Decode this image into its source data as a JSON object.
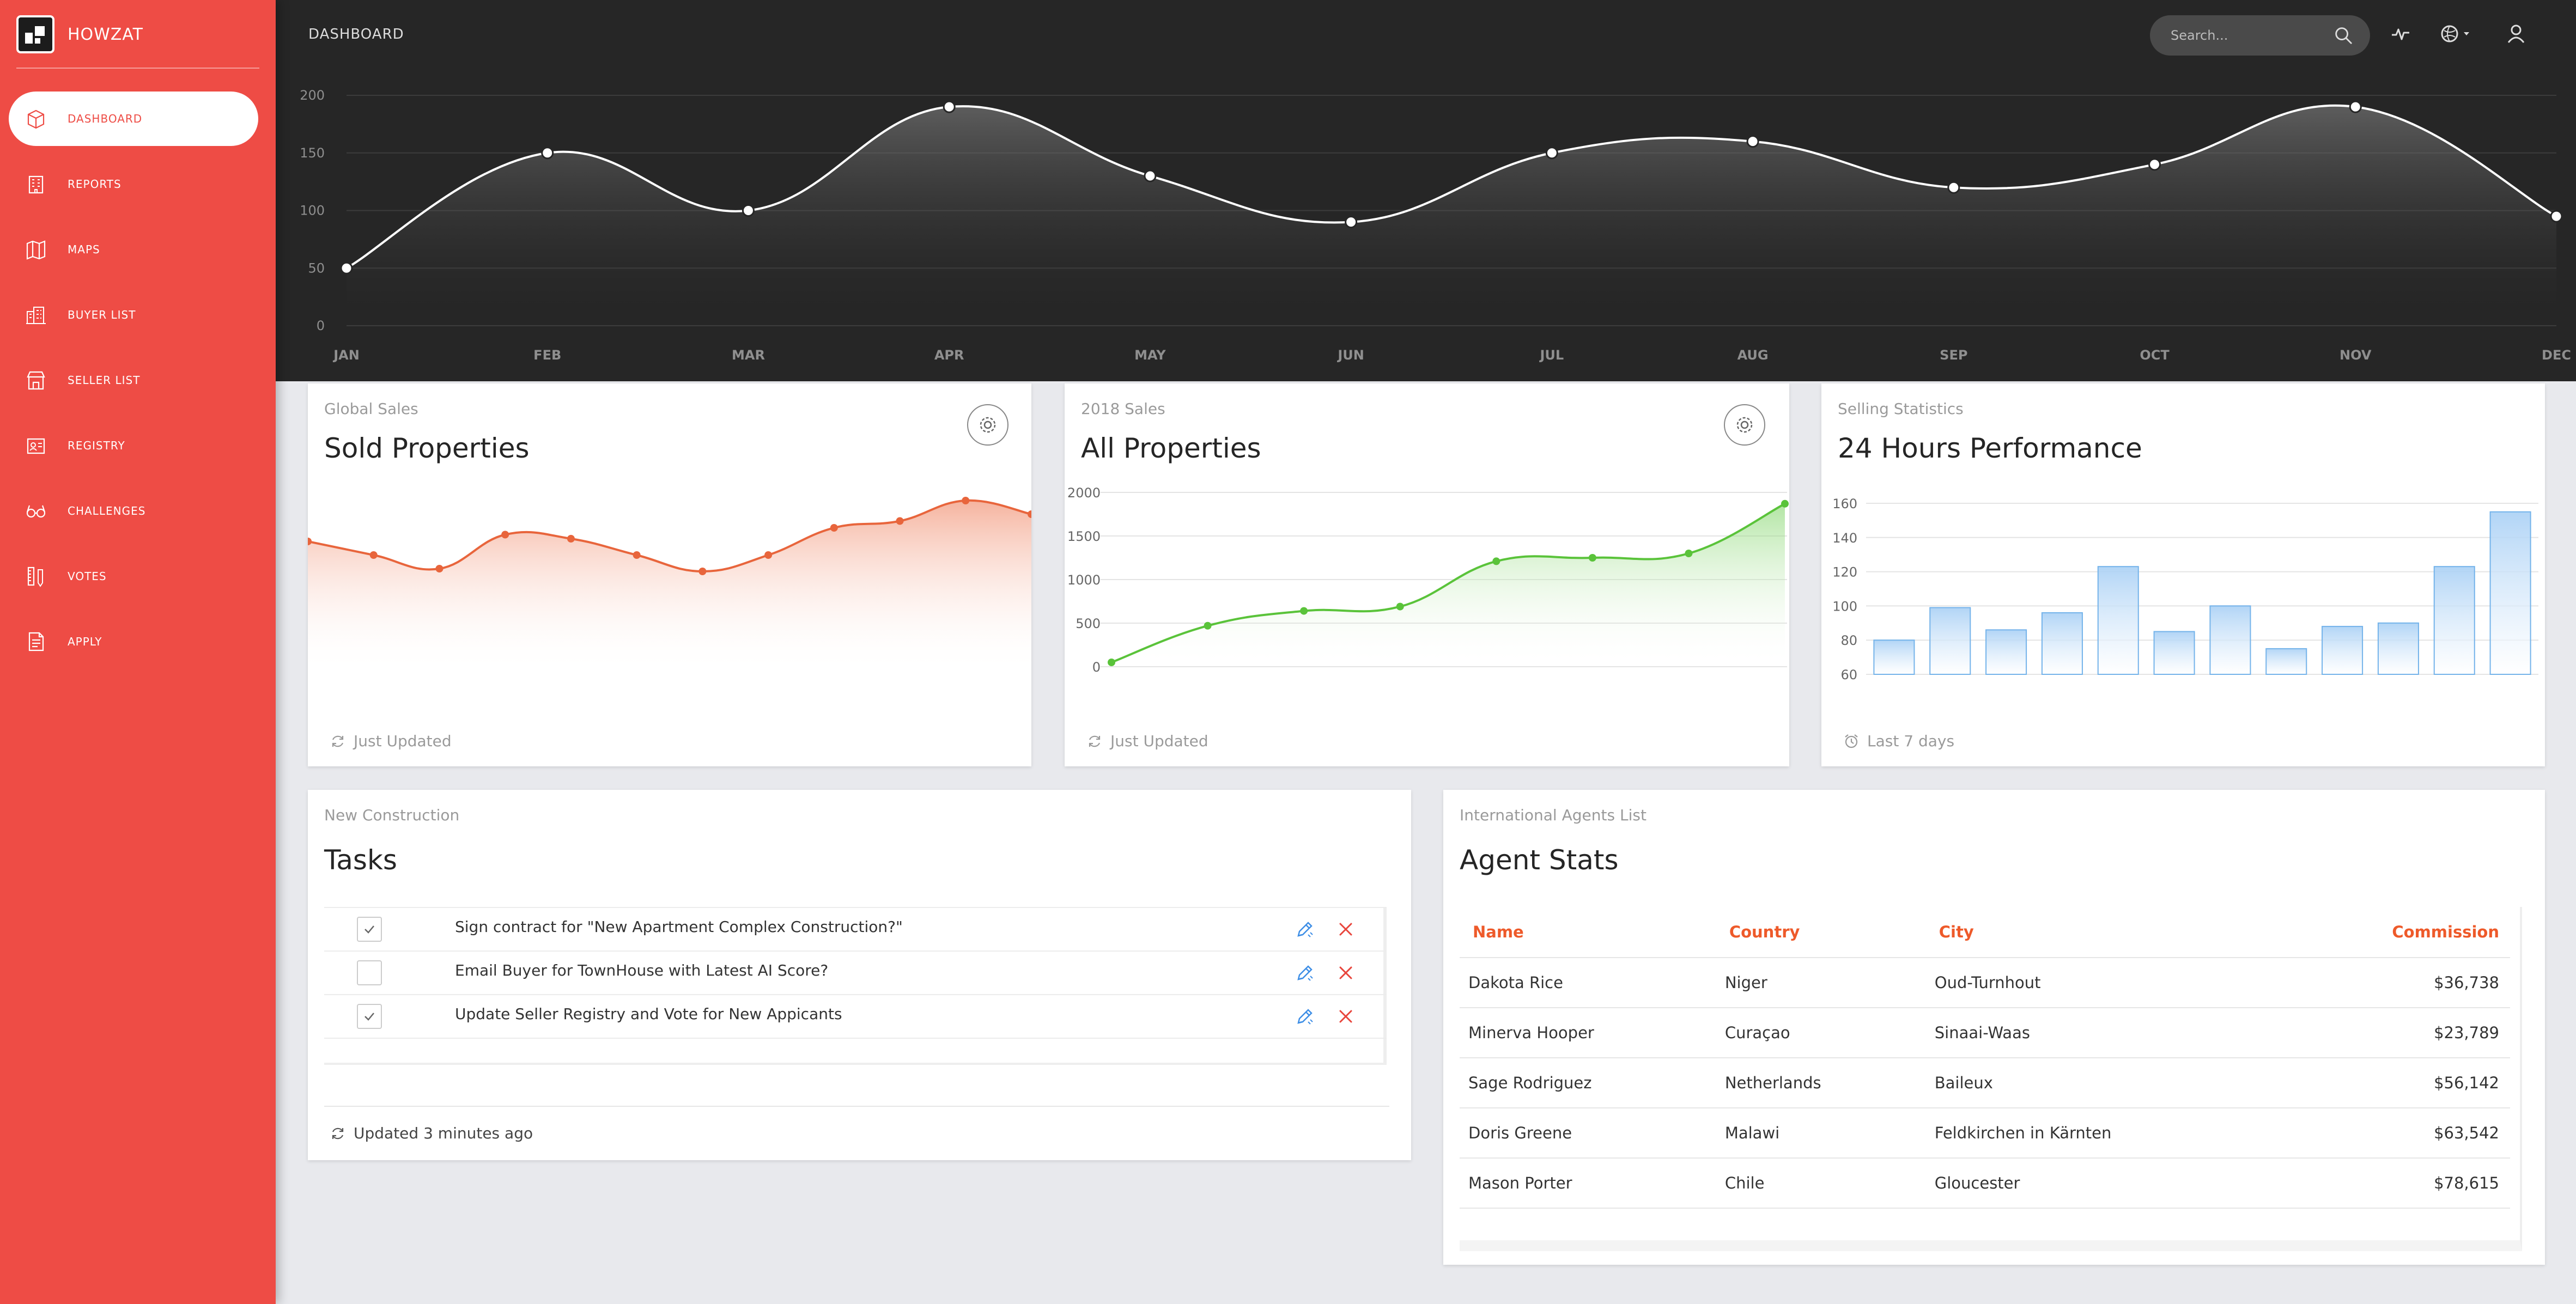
{
  "brand": {
    "name": "HOWZAT"
  },
  "nav": [
    {
      "label": "DASHBOARD",
      "icon": "box-icon",
      "active": true
    },
    {
      "label": "REPORTS",
      "icon": "building-icon"
    },
    {
      "label": "MAPS",
      "icon": "map-icon"
    },
    {
      "label": "BUYER LIST",
      "icon": "buildings-icon"
    },
    {
      "label": "SELLER LIST",
      "icon": "shop-icon"
    },
    {
      "label": "REGISTRY",
      "icon": "id-badge-icon"
    },
    {
      "label": "CHALLENGES",
      "icon": "glasses-icon"
    },
    {
      "label": "VOTES",
      "icon": "ruler-pencil-icon"
    },
    {
      "label": "APPLY",
      "icon": "document-icon"
    }
  ],
  "header": {
    "title": "DASHBOARD",
    "search_placeholder": "Search..."
  },
  "colors": {
    "sidebar": "#ee4c45",
    "header": "#262626",
    "orange_line": "#e8653c",
    "green_line": "#5ac33a",
    "blue_bar": "#74b3ea"
  },
  "cards": {
    "sold": {
      "category": "Global Sales",
      "title": "Sold Properties",
      "footer": "Just Updated"
    },
    "all": {
      "category": "2018 Sales",
      "title": "All Properties",
      "footer": "Just Updated"
    },
    "perf": {
      "category": "Selling Statistics",
      "title": "24 Hours Performance",
      "footer": "Last 7 days"
    },
    "tasks": {
      "category": "New Construction",
      "title": "Tasks",
      "footer": "Updated 3 minutes ago"
    },
    "agents": {
      "category": "International Agents List",
      "title": "Agent Stats"
    }
  },
  "tasks": [
    {
      "text": "Sign contract for \"New Apartment Complex Construction?\"",
      "checked": true
    },
    {
      "text": "Email Buyer for TownHouse with Latest AI Score?",
      "checked": false
    },
    {
      "text": "Update Seller Registry and Vote for New Appicants",
      "checked": true
    }
  ],
  "agents_table": {
    "headers": [
      "Name",
      "Country",
      "City",
      "Commission"
    ],
    "rows": [
      [
        "Dakota Rice",
        "Niger",
        "Oud-Turnhout",
        "$36,738"
      ],
      [
        "Minerva Hooper",
        "Curaçao",
        "Sinaai-Waas",
        "$23,789"
      ],
      [
        "Sage Rodriguez",
        "Netherlands",
        "Baileux",
        "$56,142"
      ],
      [
        "Doris Greene",
        "Malawi",
        "Feldkirchen in Kärnten",
        "$63,542"
      ],
      [
        "Mason Porter",
        "Chile",
        "Gloucester",
        "$78,615"
      ]
    ]
  },
  "chart_data": [
    {
      "type": "area",
      "categories": [
        "JAN",
        "FEB",
        "MAR",
        "APR",
        "MAY",
        "JUN",
        "JUL",
        "AUG",
        "SEP",
        "OCT",
        "NOV",
        "DEC"
      ],
      "values": [
        50,
        150,
        100,
        190,
        130,
        90,
        150,
        160,
        120,
        140,
        190,
        95
      ],
      "yticks": [
        0,
        50,
        100,
        150,
        200
      ],
      "ylim": [
        0,
        200
      ],
      "grid": true
    },
    {
      "type": "area",
      "values": [
        80,
        70,
        60,
        85,
        82,
        70,
        58,
        70,
        90,
        95,
        110,
        100
      ],
      "ylim": [
        0,
        120
      ],
      "grid": false
    },
    {
      "type": "area",
      "values": [
        50,
        470,
        640,
        690,
        1210,
        1250,
        1300,
        1870
      ],
      "yticks": [
        0,
        500,
        1000,
        1500,
        2000
      ],
      "ylim": [
        0,
        2000
      ],
      "grid": true
    },
    {
      "type": "bar",
      "values": [
        80,
        99,
        86,
        96,
        123,
        85,
        100,
        75,
        88,
        90,
        123,
        155
      ],
      "yticks": [
        60,
        80,
        100,
        120,
        140,
        160
      ],
      "ylim": [
        60,
        160
      ],
      "grid": true
    }
  ]
}
